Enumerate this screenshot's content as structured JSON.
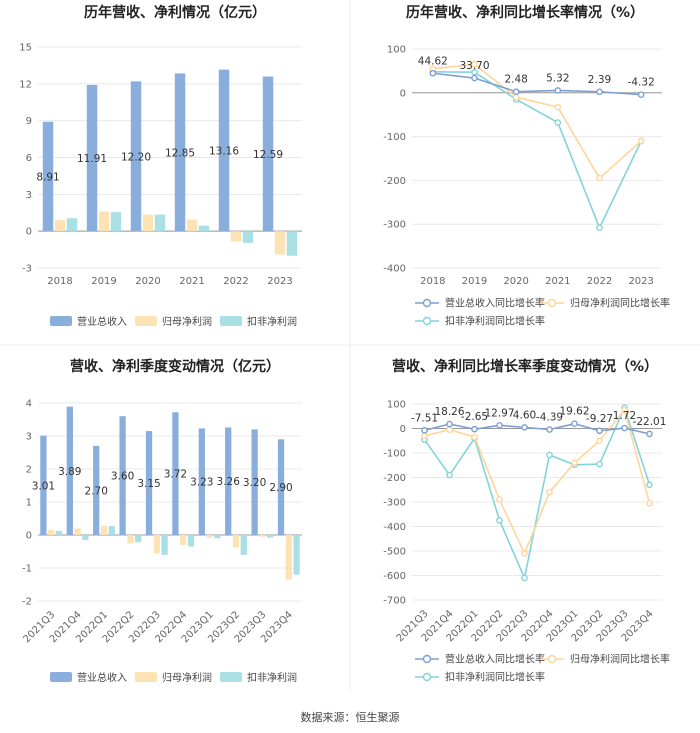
{
  "source": "数据来源：恒生聚源",
  "colors": {
    "revenue": "#8aaedb",
    "parent_profit": "#fde2b3",
    "deducted_profit": "#a9e0e3",
    "revenue_line": "#7d9fd3",
    "parent_line": "#ffd59a",
    "deducted_line": "#82d4dc"
  },
  "chart_data": [
    {
      "type": "bar",
      "title": "历年营收、净利情况（亿元）",
      "categories": [
        "2018",
        "2019",
        "2020",
        "2021",
        "2022",
        "2023"
      ],
      "ylim": [
        -3,
        15
      ],
      "yticks": [
        -3,
        0,
        3,
        6,
        9,
        12,
        15
      ],
      "series": [
        {
          "name": "营业总收入",
          "values": [
            8.91,
            11.91,
            12.2,
            12.85,
            13.16,
            12.59
          ],
          "labels": [
            "8.91",
            "11.91",
            "12.20",
            "12.85",
            "13.16",
            "12.59"
          ]
        },
        {
          "name": "归母净利润",
          "values": [
            0.9,
            1.6,
            1.35,
            0.95,
            -0.85,
            -1.9
          ]
        },
        {
          "name": "扣非净利润",
          "values": [
            1.05,
            1.55,
            1.35,
            0.45,
            -0.95,
            -2.0
          ]
        }
      ]
    },
    {
      "type": "line",
      "title": "历年营收、净利同比增长率情况（%）",
      "categories": [
        "2018",
        "2019",
        "2020",
        "2021",
        "2022",
        "2023"
      ],
      "ylim": [
        -400,
        100
      ],
      "yticks": [
        -400,
        -300,
        -200,
        -100,
        0,
        100
      ],
      "series": [
        {
          "name": "营业总收入同比增长率",
          "values": [
            44.62,
            33.7,
            2.48,
            5.32,
            2.39,
            -4.32
          ],
          "labels": [
            "44.62",
            "33.70",
            "2.48",
            "5.32",
            "2.39",
            "-4.32"
          ]
        },
        {
          "name": "归母净利润同比增长率",
          "values": [
            55,
            65,
            -10,
            -33,
            -195,
            -110
          ]
        },
        {
          "name": "扣非净利润同比增长率",
          "values": [
            48,
            47,
            -15,
            -68,
            -308,
            -110
          ]
        }
      ]
    },
    {
      "type": "bar",
      "title": "营收、净利季度变动情况（亿元）",
      "categories": [
        "2021Q3",
        "2021Q4",
        "2022Q1",
        "2022Q2",
        "2022Q3",
        "2022Q4",
        "2023Q1",
        "2023Q2",
        "2023Q3",
        "2023Q4"
      ],
      "ylim": [
        -2,
        4
      ],
      "yticks": [
        -2,
        -1,
        0,
        1,
        2,
        3,
        4
      ],
      "series": [
        {
          "name": "营业总收入",
          "values": [
            3.01,
            3.89,
            2.7,
            3.6,
            3.15,
            3.72,
            3.23,
            3.26,
            3.2,
            2.9
          ],
          "labels": [
            "3.01",
            "3.89",
            "2.70",
            "3.60",
            "3.15",
            "3.72",
            "3.23",
            "3.26",
            "3.20",
            "2.90"
          ]
        },
        {
          "name": "归母净利润",
          "values": [
            0.15,
            0.2,
            0.28,
            -0.25,
            -0.55,
            -0.3,
            -0.08,
            -0.38,
            -0.05,
            -1.35
          ]
        },
        {
          "name": "扣非净利润",
          "values": [
            0.12,
            -0.15,
            0.27,
            -0.22,
            -0.6,
            -0.35,
            -0.1,
            -0.6,
            -0.08,
            -1.2
          ]
        }
      ]
    },
    {
      "type": "line",
      "title": "营收、净利同比增长率季度变动情况（%）",
      "categories": [
        "2021Q3",
        "2021Q4",
        "2022Q1",
        "2022Q2",
        "2022Q3",
        "2022Q4",
        "2023Q1",
        "2023Q2",
        "2023Q3",
        "2023Q4"
      ],
      "ylim": [
        -700,
        100
      ],
      "yticks": [
        -700,
        -600,
        -500,
        -400,
        -300,
        -200,
        -100,
        0,
        100
      ],
      "series": [
        {
          "name": "营业总收入同比增长率",
          "values": [
            -7.51,
            18.26,
            -2.65,
            12.97,
            4.6,
            -4.39,
            19.62,
            -9.27,
            1.72,
            -22.01
          ],
          "labels": [
            "-7.51",
            "18.26",
            "-2.65",
            "12.97",
            "4.60",
            "-4.39",
            "19.62",
            "-9.27",
            "1.72",
            "-22.01"
          ]
        },
        {
          "name": "归母净利润同比增长率",
          "values": [
            -30,
            -5,
            -35,
            -290,
            -510,
            -260,
            -140,
            -50,
            75,
            -305
          ]
        },
        {
          "name": "扣非净利润同比增长率",
          "values": [
            -45,
            -190,
            -40,
            -375,
            -610,
            -108,
            -148,
            -145,
            85,
            -230
          ]
        }
      ]
    }
  ]
}
